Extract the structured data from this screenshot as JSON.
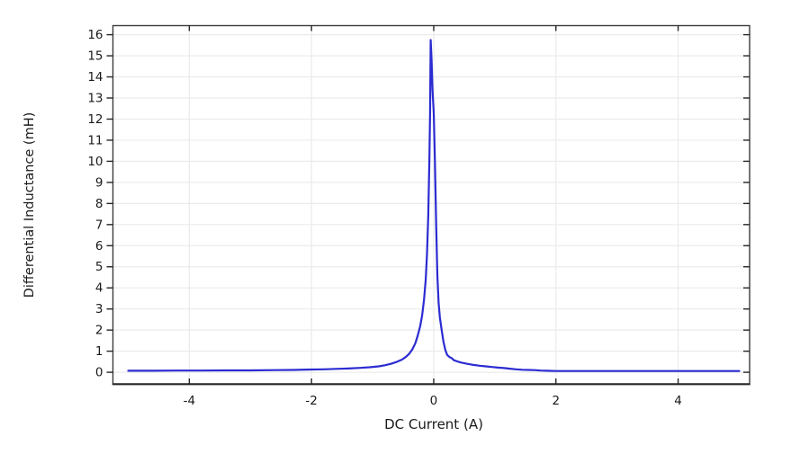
{
  "chart_data": {
    "type": "line",
    "title": "",
    "xlabel": "DC Current (A)",
    "ylabel": "Differential Inductance (mH)",
    "xlim": [
      -5.25,
      5.17
    ],
    "ylim": [
      -0.55,
      16.43
    ],
    "xticks": [
      -4,
      -2,
      0,
      2,
      4
    ],
    "yticks": [
      0,
      1,
      2,
      3,
      4,
      5,
      6,
      7,
      8,
      9,
      10,
      11,
      12,
      13,
      14,
      15,
      16
    ],
    "grid": true,
    "legend_position": "none",
    "colors": {
      "line": "#2b2bd2",
      "grid": "#ebebeb",
      "frame": "#3a3a3a",
      "axis": "#262626",
      "text": "#1a1a1a"
    },
    "series": [
      {
        "name": "Differential inductance",
        "x": [
          -5.0,
          -4.6,
          -4.2,
          -3.8,
          -3.4,
          -3.0,
          -2.6,
          -2.3,
          -2.0,
          -1.8,
          -1.6,
          -1.4,
          -1.2,
          -1.05,
          -0.9,
          -0.8,
          -0.7,
          -0.6,
          -0.52,
          -0.45,
          -0.4,
          -0.35,
          -0.3,
          -0.26,
          -0.22,
          -0.19,
          -0.16,
          -0.13,
          -0.11,
          -0.09,
          -0.07,
          -0.06,
          -0.05,
          -0.035,
          -0.02,
          0.0,
          0.02,
          0.04,
          0.06,
          0.08,
          0.1,
          0.13,
          0.16,
          0.19,
          0.22,
          0.26,
          0.3,
          0.33,
          0.38,
          0.45,
          0.55,
          0.65,
          0.75,
          0.85,
          0.95,
          1.05,
          1.15,
          1.25,
          1.35,
          1.45,
          1.55,
          1.65,
          1.75,
          1.85,
          2.0,
          2.3,
          2.7,
          3.1,
          3.5,
          4.0,
          4.5,
          5.0
        ],
        "y": [
          0.07,
          0.07,
          0.08,
          0.08,
          0.09,
          0.09,
          0.1,
          0.11,
          0.13,
          0.14,
          0.16,
          0.18,
          0.21,
          0.24,
          0.28,
          0.33,
          0.4,
          0.5,
          0.6,
          0.74,
          0.88,
          1.08,
          1.38,
          1.75,
          2.2,
          2.7,
          3.4,
          4.4,
          5.6,
          7.4,
          10.2,
          12.2,
          15.75,
          14.8,
          13.4,
          12.3,
          10.0,
          7.0,
          4.6,
          3.3,
          2.6,
          2.0,
          1.45,
          1.05,
          0.82,
          0.72,
          0.66,
          0.57,
          0.52,
          0.46,
          0.4,
          0.35,
          0.31,
          0.28,
          0.25,
          0.22,
          0.2,
          0.17,
          0.14,
          0.12,
          0.11,
          0.1,
          0.08,
          0.07,
          0.06,
          0.06,
          0.06,
          0.06,
          0.06,
          0.06,
          0.06,
          0.06
        ]
      }
    ]
  }
}
